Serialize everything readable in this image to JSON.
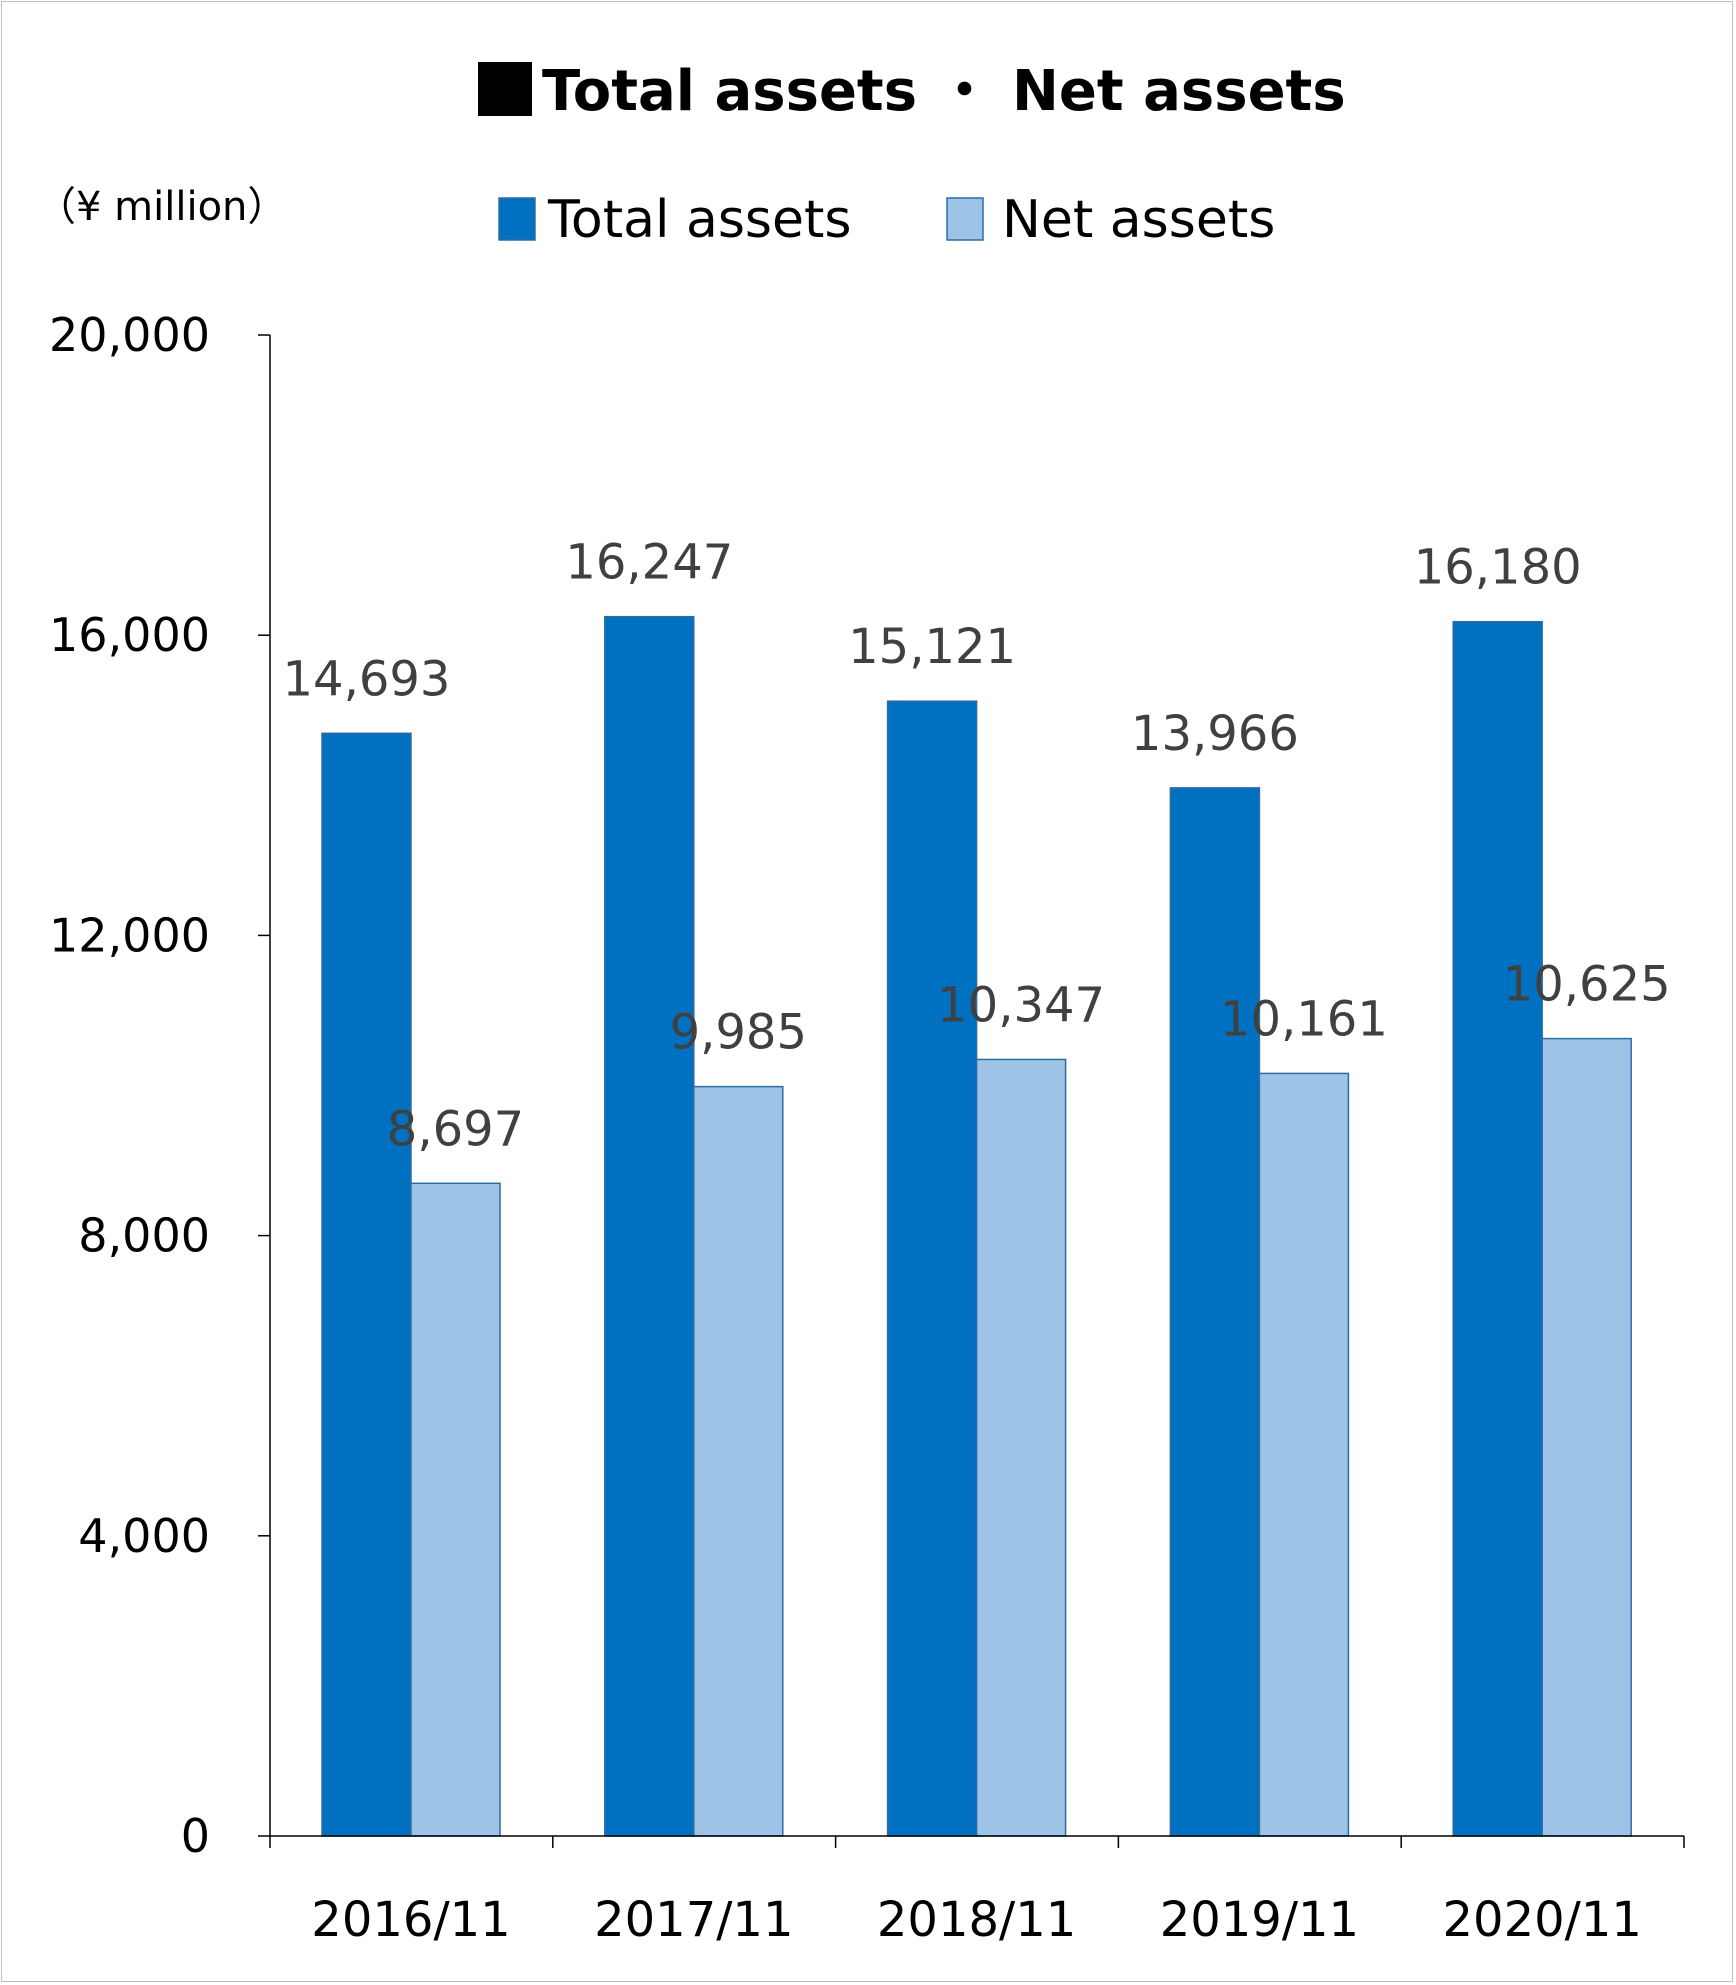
{
  "chart_data": {
    "type": "bar",
    "title": "Total assets ・ Net assets",
    "unit_label": "（¥ million）",
    "categories": [
      "2016/11",
      "2017/11",
      "2018/11",
      "2019/11",
      "2020/11"
    ],
    "series": [
      {
        "name": "Total assets",
        "color": "#0070C0",
        "values": [
          14693,
          16247,
          15121,
          13966,
          16180
        ],
        "labels": [
          "14,693",
          "16,247",
          "15,121",
          "13,966",
          "16,180"
        ]
      },
      {
        "name": "Net assets",
        "color": "#9DC3E6",
        "values": [
          8697,
          9985,
          10347,
          10161,
          10625
        ],
        "labels": [
          "8,697",
          "9,985",
          "10,347",
          "10,161",
          "10,625"
        ]
      }
    ],
    "ylim": [
      0,
      20000
    ],
    "yticks": [
      0,
      4000,
      8000,
      12000,
      16000,
      20000
    ],
    "ytick_labels": [
      "0",
      "4,000",
      "8,000",
      "12,000",
      "16,000",
      "20,000"
    ],
    "xlabel": "",
    "ylabel": "",
    "grid": false,
    "legend_position": "top-center"
  }
}
